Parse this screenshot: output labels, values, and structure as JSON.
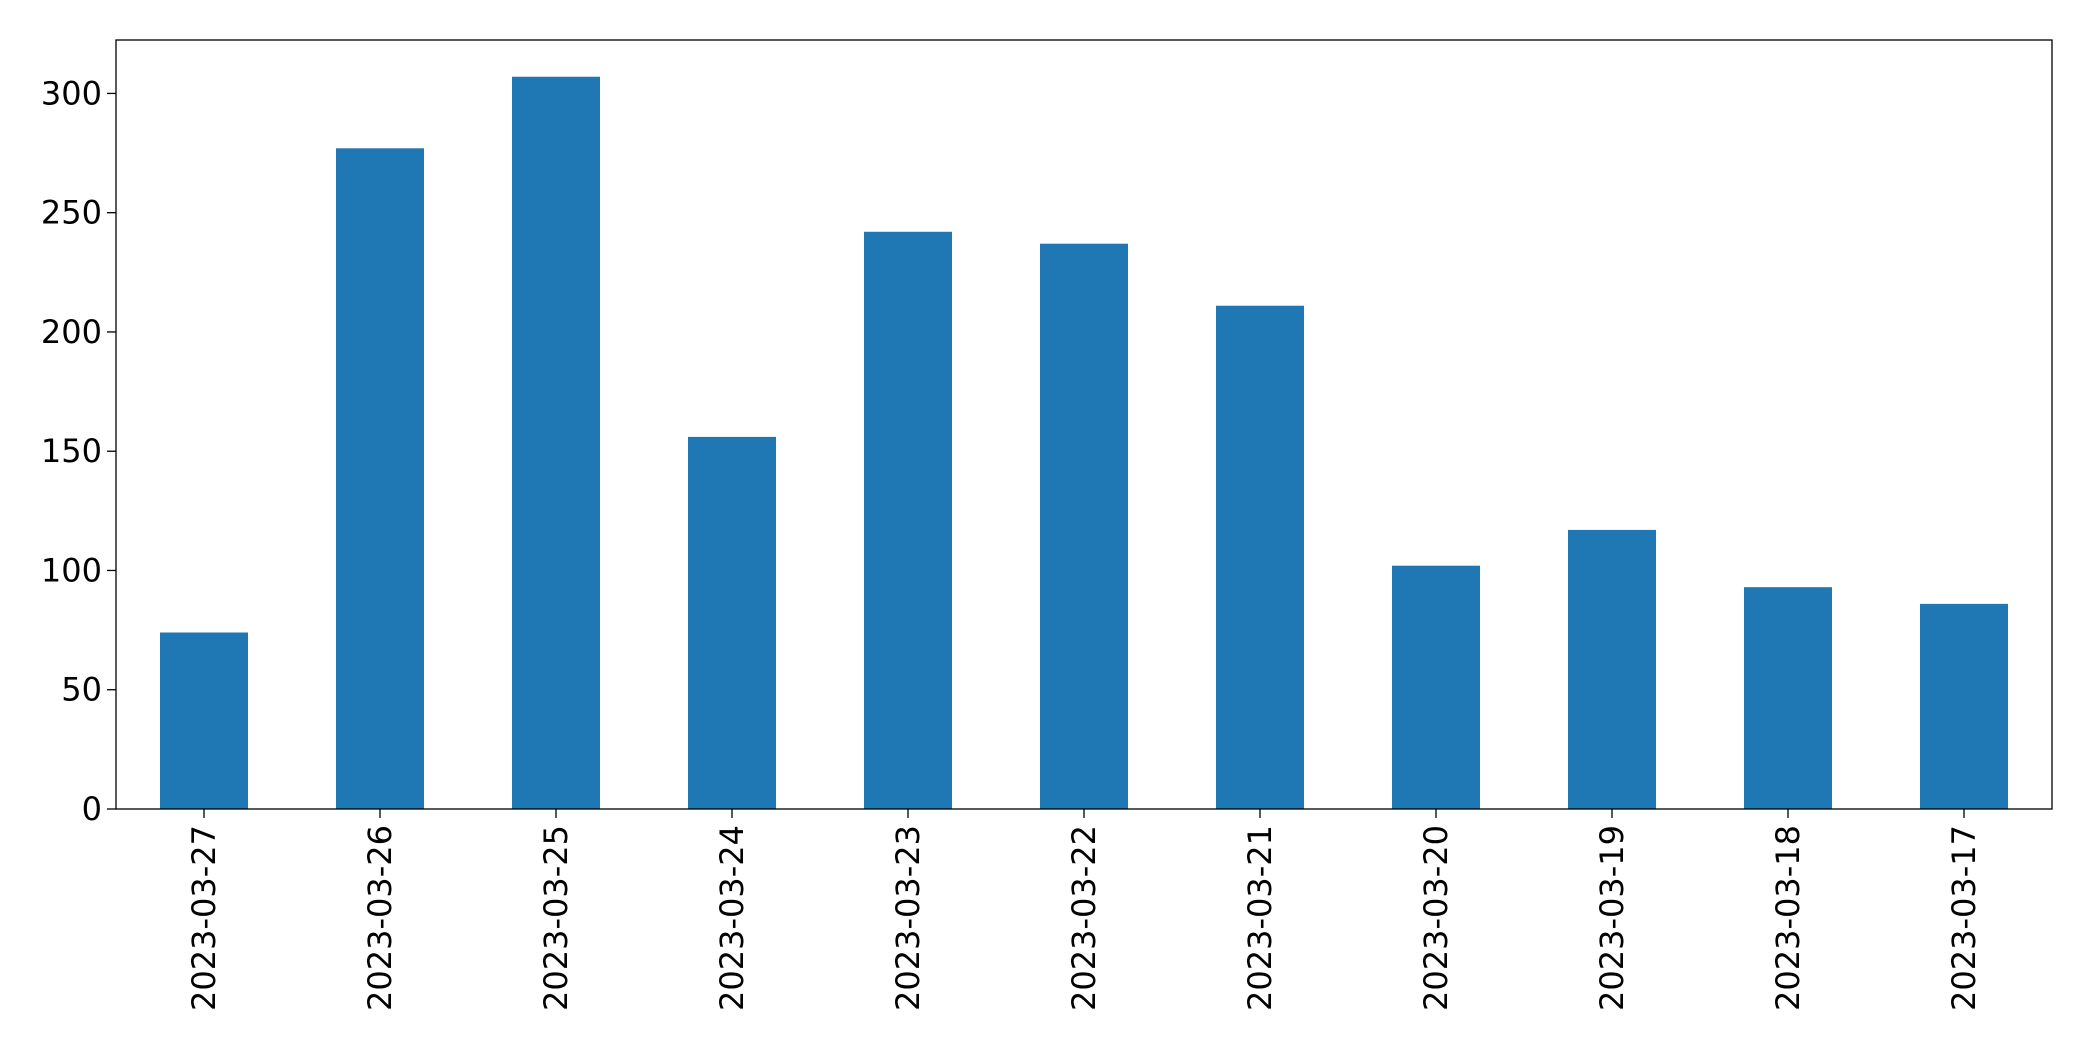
{
  "chart_data": {
    "type": "bar",
    "categories": [
      "2023-03-27",
      "2023-03-26",
      "2023-03-25",
      "2023-03-24",
      "2023-03-23",
      "2023-03-22",
      "2023-03-21",
      "2023-03-20",
      "2023-03-19",
      "2023-03-18",
      "2023-03-17"
    ],
    "values": [
      74,
      277,
      307,
      156,
      242,
      237,
      211,
      102,
      117,
      93,
      86
    ],
    "color": "#1f77b4",
    "ylim": [
      0,
      322.4
    ],
    "yticks": [
      0,
      50,
      100,
      150,
      200,
      250,
      300
    ],
    "grid": false
  }
}
